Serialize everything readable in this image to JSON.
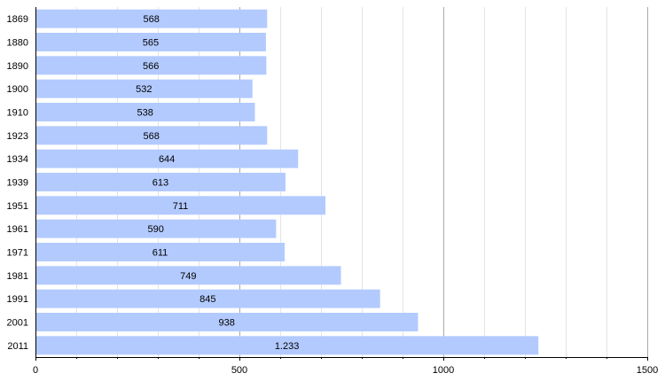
{
  "chart_data": {
    "type": "bar",
    "orientation": "horizontal",
    "categories": [
      "1869",
      "1880",
      "1890",
      "1900",
      "1910",
      "1923",
      "1934",
      "1939",
      "1951",
      "1961",
      "1971",
      "1981",
      "1991",
      "2001",
      "2011"
    ],
    "values": [
      568,
      565,
      566,
      532,
      538,
      568,
      644,
      613,
      711,
      590,
      611,
      749,
      845,
      938,
      1233
    ],
    "value_labels": [
      "568",
      "565",
      "566",
      "532",
      "538",
      "568",
      "644",
      "613",
      "711",
      "590",
      "611",
      "749",
      "845",
      "938",
      "1.233"
    ],
    "xlim": [
      0,
      1500
    ],
    "x_ticks": [
      0,
      500,
      1000,
      1500
    ],
    "x_tick_labels": [
      "0",
      "500",
      "1000",
      "1500"
    ],
    "grid": true,
    "bar_color": "#b3caff",
    "major_grid_color": "#aaaaaa",
    "minor_grid_color": "#e4e4e4"
  }
}
